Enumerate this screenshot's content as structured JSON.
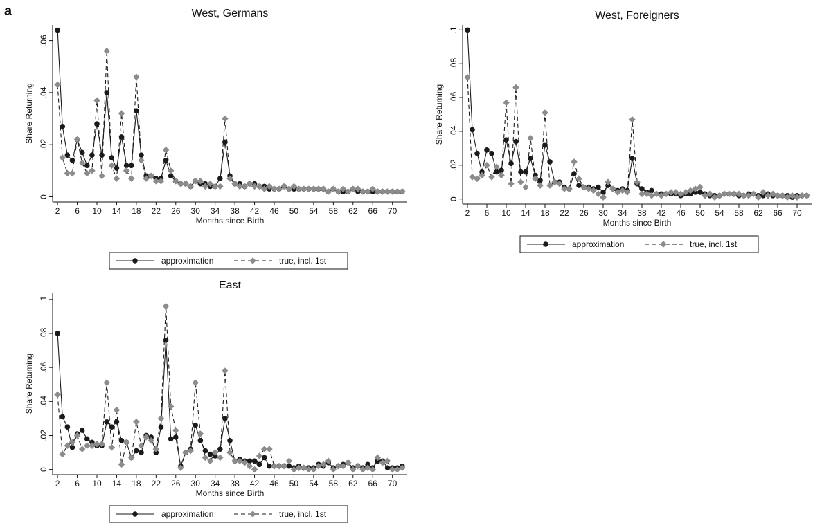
{
  "panel_label": "a",
  "chart_data": [
    {
      "type": "line",
      "title": "West, Germans",
      "x_label": "Months since Birth",
      "y_label": "Share Returning",
      "x": [
        2,
        3,
        4,
        5,
        6,
        7,
        8,
        9,
        10,
        11,
        12,
        13,
        14,
        15,
        16,
        17,
        18,
        19,
        20,
        21,
        22,
        23,
        24,
        25,
        26,
        27,
        28,
        29,
        30,
        31,
        32,
        33,
        34,
        35,
        36,
        37,
        38,
        39,
        40,
        41,
        42,
        43,
        44,
        45,
        46,
        47,
        48,
        49,
        50,
        51,
        52,
        53,
        54,
        55,
        56,
        57,
        58,
        59,
        60,
        61,
        62,
        63,
        64,
        65,
        66,
        67,
        68,
        69,
        70,
        71,
        72
      ],
      "xlim": [
        1,
        73
      ],
      "xticks": [
        2,
        6,
        10,
        14,
        18,
        22,
        26,
        30,
        34,
        38,
        42,
        46,
        50,
        54,
        58,
        62,
        66,
        70
      ],
      "ylim": [
        -0.002,
        0.066
      ],
      "yticks": [
        0,
        {
          "value": 0.02,
          "label": ".02"
        },
        {
          "value": 0.04,
          "label": ".04"
        },
        {
          "value": 0.06,
          "label": ".06"
        }
      ],
      "series": [
        {
          "name": "approximation",
          "color": "#1a1a1a",
          "line_color": "#1a1a1a",
          "dashed": false,
          "marker": "circle",
          "values": [
            0.064,
            0.027,
            0.016,
            0.014,
            0.022,
            0.017,
            0.012,
            0.016,
            0.028,
            0.016,
            0.04,
            0.015,
            0.011,
            0.023,
            0.012,
            0.012,
            0.033,
            0.016,
            0.008,
            0.008,
            0.007,
            0.007,
            0.014,
            0.008,
            0.006,
            0.005,
            0.005,
            0.004,
            0.006,
            0.005,
            0.005,
            0.004,
            0.004,
            0.007,
            0.021,
            0.008,
            0.005,
            0.005,
            0.004,
            0.005,
            0.005,
            0.004,
            0.004,
            0.003,
            0.003,
            0.003,
            0.004,
            0.003,
            0.003,
            0.003,
            0.003,
            0.003,
            0.003,
            0.003,
            0.003,
            0.002,
            0.003,
            0.002,
            0.002,
            0.002,
            0.003,
            0.002,
            0.002,
            0.002,
            0.002,
            0.002,
            0.002,
            0.002,
            0.002,
            0.002,
            0.002
          ]
        },
        {
          "name": "true, incl. 1st",
          "color": "#8c8c8c",
          "line_color": "#1a1a1a",
          "dashed": true,
          "marker": "diamond",
          "values": [
            0.043,
            0.015,
            0.009,
            0.009,
            0.022,
            0.013,
            0.009,
            0.01,
            0.037,
            0.008,
            0.056,
            0.012,
            0.007,
            0.032,
            0.01,
            0.007,
            0.046,
            0.014,
            0.007,
            0.008,
            0.006,
            0.006,
            0.018,
            0.01,
            0.006,
            0.005,
            0.005,
            0.004,
            0.006,
            0.006,
            0.004,
            0.005,
            0.004,
            0.004,
            0.03,
            0.007,
            0.005,
            0.004,
            0.004,
            0.005,
            0.004,
            0.004,
            0.003,
            0.004,
            0.003,
            0.003,
            0.004,
            0.003,
            0.004,
            0.003,
            0.003,
            0.003,
            0.003,
            0.003,
            0.003,
            0.002,
            0.003,
            0.002,
            0.003,
            0.002,
            0.003,
            0.003,
            0.002,
            0.002,
            0.003,
            0.002,
            0.002,
            0.002,
            0.002,
            0.002,
            0.002
          ]
        }
      ]
    },
    {
      "type": "line",
      "title": "West, Foreigners",
      "x_label": "Months since Birth",
      "y_label": "Share Returning",
      "x": [
        2,
        3,
        4,
        5,
        6,
        7,
        8,
        9,
        10,
        11,
        12,
        13,
        14,
        15,
        16,
        17,
        18,
        19,
        20,
        21,
        22,
        23,
        24,
        25,
        26,
        27,
        28,
        29,
        30,
        31,
        32,
        33,
        34,
        35,
        36,
        37,
        38,
        39,
        40,
        41,
        42,
        43,
        44,
        45,
        46,
        47,
        48,
        49,
        50,
        51,
        52,
        53,
        54,
        55,
        56,
        57,
        58,
        59,
        60,
        61,
        62,
        63,
        64,
        65,
        66,
        67,
        68,
        69,
        70,
        71,
        72
      ],
      "xlim": [
        1,
        73
      ],
      "xticks": [
        2,
        6,
        10,
        14,
        18,
        22,
        26,
        30,
        34,
        38,
        42,
        46,
        50,
        54,
        58,
        62,
        66,
        70
      ],
      "ylim": [
        -0.003,
        0.103
      ],
      "yticks": [
        0,
        {
          "value": 0.02,
          "label": ".02"
        },
        {
          "value": 0.04,
          "label": ".04"
        },
        {
          "value": 0.06,
          "label": ".06"
        },
        {
          "value": 0.08,
          "label": ".08"
        },
        {
          "value": 0.1,
          "label": ".1"
        }
      ],
      "series": [
        {
          "name": "approximation",
          "color": "#1a1a1a",
          "line_color": "#1a1a1a",
          "dashed": false,
          "marker": "circle",
          "values": [
            0.1,
            0.041,
            0.027,
            0.016,
            0.029,
            0.027,
            0.016,
            0.017,
            0.035,
            0.021,
            0.034,
            0.016,
            0.016,
            0.024,
            0.014,
            0.011,
            0.032,
            0.022,
            0.01,
            0.01,
            0.007,
            0.006,
            0.015,
            0.008,
            0.007,
            0.007,
            0.006,
            0.007,
            0.004,
            0.008,
            0.006,
            0.005,
            0.006,
            0.005,
            0.024,
            0.009,
            0.006,
            0.004,
            0.005,
            0.003,
            0.003,
            0.003,
            0.003,
            0.003,
            0.002,
            0.003,
            0.003,
            0.004,
            0.004,
            0.003,
            0.002,
            0.002,
            0.002,
            0.003,
            0.003,
            0.003,
            0.002,
            0.002,
            0.003,
            0.003,
            0.002,
            0.002,
            0.003,
            0.002,
            0.002,
            0.002,
            0.002,
            0.001,
            0.002,
            0.002,
            0.002
          ]
        },
        {
          "name": "true, incl. 1st",
          "color": "#8c8c8c",
          "line_color": "#1a1a1a",
          "dashed": true,
          "marker": "diamond",
          "values": [
            0.072,
            0.013,
            0.012,
            0.014,
            0.02,
            0.013,
            0.019,
            0.014,
            0.057,
            0.009,
            0.066,
            0.01,
            0.007,
            0.036,
            0.012,
            0.008,
            0.051,
            0.008,
            0.01,
            0.009,
            0.006,
            0.006,
            0.022,
            0.012,
            0.007,
            0.006,
            0.005,
            0.003,
            0.001,
            0.01,
            0.006,
            0.004,
            0.005,
            0.004,
            0.047,
            0.01,
            0.003,
            0.003,
            0.002,
            0.003,
            0.002,
            0.003,
            0.004,
            0.004,
            0.003,
            0.004,
            0.005,
            0.006,
            0.007,
            0.002,
            0.003,
            0.001,
            0.002,
            0.003,
            0.003,
            0.003,
            0.003,
            0.002,
            0.002,
            0.003,
            0.001,
            0.004,
            0.002,
            0.003,
            0.002,
            0.002,
            0.001,
            0.002,
            0.001,
            0.002,
            0.002
          ]
        }
      ]
    },
    {
      "type": "line",
      "title": "East",
      "x_label": "Months since Birth",
      "y_label": "Share Returning",
      "x": [
        2,
        3,
        4,
        5,
        6,
        7,
        8,
        9,
        10,
        11,
        12,
        13,
        14,
        15,
        16,
        17,
        18,
        19,
        20,
        21,
        22,
        23,
        24,
        25,
        26,
        27,
        28,
        29,
        30,
        31,
        32,
        33,
        34,
        35,
        36,
        37,
        38,
        39,
        40,
        41,
        42,
        43,
        44,
        45,
        46,
        47,
        48,
        49,
        50,
        51,
        52,
        53,
        54,
        55,
        56,
        57,
        58,
        59,
        60,
        61,
        62,
        63,
        64,
        65,
        66,
        67,
        68,
        69,
        70,
        71,
        72
      ],
      "xlim": [
        1,
        73
      ],
      "xticks": [
        2,
        6,
        10,
        14,
        18,
        22,
        26,
        30,
        34,
        38,
        42,
        46,
        50,
        54,
        58,
        62,
        66,
        70
      ],
      "ylim": [
        -0.003,
        0.104
      ],
      "yticks": [
        0,
        {
          "value": 0.02,
          "label": ".02"
        },
        {
          "value": 0.04,
          "label": ".04"
        },
        {
          "value": 0.06,
          "label": ".06"
        },
        {
          "value": 0.08,
          "label": ".08"
        },
        {
          "value": 0.1,
          "label": ".1"
        }
      ],
      "series": [
        {
          "name": "approximation",
          "color": "#1a1a1a",
          "line_color": "#1a1a1a",
          "dashed": false,
          "marker": "circle",
          "values": [
            0.08,
            0.031,
            0.025,
            0.013,
            0.021,
            0.023,
            0.018,
            0.016,
            0.014,
            0.014,
            0.028,
            0.025,
            0.028,
            0.017,
            0.016,
            0.007,
            0.011,
            0.01,
            0.02,
            0.019,
            0.01,
            0.025,
            0.076,
            0.018,
            0.019,
            0.002,
            0.01,
            0.012,
            0.026,
            0.017,
            0.011,
            0.009,
            0.008,
            0.012,
            0.03,
            0.017,
            0.005,
            0.006,
            0.005,
            0.005,
            0.005,
            0.003,
            0.007,
            0.002,
            0.002,
            0.002,
            0.002,
            0.002,
            0.001,
            0.002,
            0.001,
            0.001,
            0.001,
            0.003,
            0.002,
            0.004,
            0.001,
            0.002,
            0.003,
            0.004,
            0.001,
            0.002,
            0.001,
            0.003,
            0.001,
            0.005,
            0.005,
            0.001,
            0.001,
            0.001,
            0.002
          ]
        },
        {
          "name": "true, incl. 1st",
          "color": "#8c8c8c",
          "line_color": "#1a1a1a",
          "dashed": true,
          "marker": "diamond",
          "values": [
            0.044,
            0.009,
            0.014,
            0.016,
            0.02,
            0.012,
            0.014,
            0.014,
            0.015,
            0.015,
            0.051,
            0.013,
            0.035,
            0.003,
            0.016,
            0.007,
            0.028,
            0.014,
            0.019,
            0.017,
            0.012,
            0.03,
            0.096,
            0.037,
            0.023,
            0.001,
            0.01,
            0.011,
            0.051,
            0.021,
            0.007,
            0.005,
            0.01,
            0.007,
            0.058,
            0.01,
            0.005,
            0.005,
            0.004,
            0.002,
            0.0,
            0.008,
            0.012,
            0.012,
            0.002,
            0.002,
            0.002,
            0.005,
            0.0,
            0.001,
            0.001,
            0.0,
            0.0,
            0.002,
            0.003,
            0.005,
            0.0,
            0.002,
            0.002,
            0.004,
            0.0,
            0.002,
            0.0,
            0.001,
            0.0,
            0.007,
            0.004,
            0.005,
            0.0,
            0.0,
            0.001
          ]
        }
      ]
    }
  ]
}
